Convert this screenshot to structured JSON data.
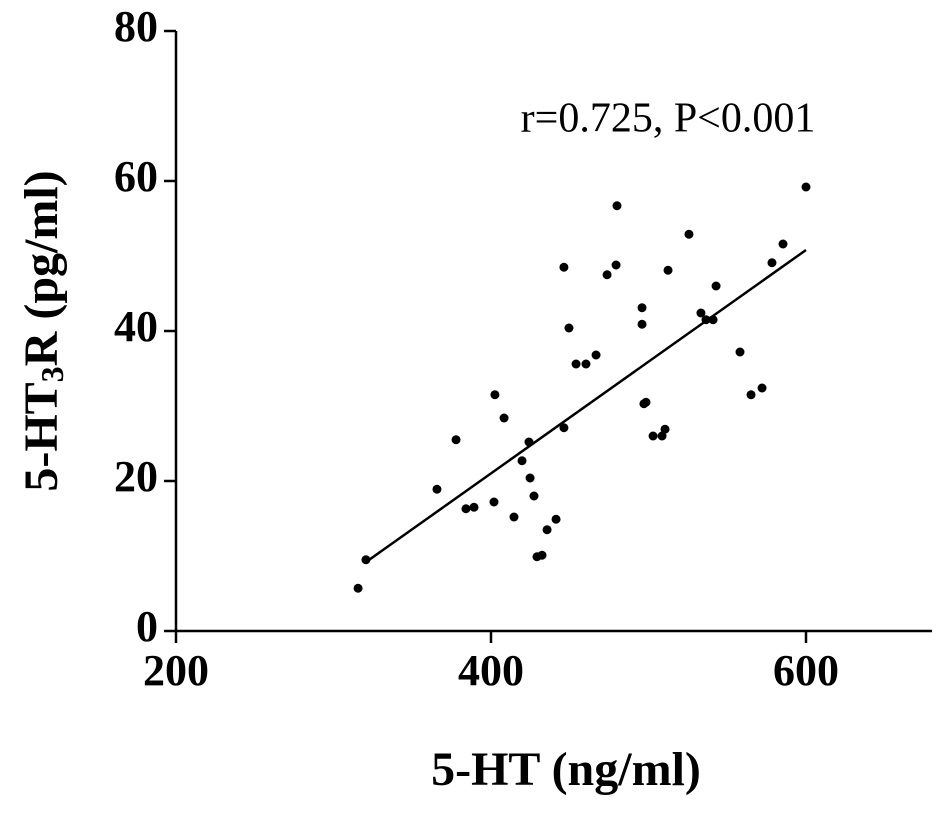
{
  "chart_data": {
    "type": "scatter",
    "annotation": "r=0.725, P<0.001",
    "x_label": "5-HT (ng/ml)",
    "y_label_parts": [
      "5-HT",
      "3",
      "R (pg/ml)"
    ],
    "color": "#000000",
    "xlim": [
      200,
      680
    ],
    "ylim": [
      0,
      80
    ],
    "xticks": [
      200,
      400,
      600
    ],
    "yticks": [
      0,
      20,
      40,
      60,
      80
    ],
    "grid": false,
    "x": [
      315.6,
      320.6,
      365.7,
      377.8,
      384.1,
      389.2,
      401.9,
      402.5,
      408.3,
      414.6,
      419.7,
      424.1,
      424.8,
      427.3,
      429.2,
      432.4,
      435.6,
      441.3,
      446.3,
      446.3,
      449.5,
      454.0,
      460.3,
      466.7,
      473.7,
      479.4,
      480.0,
      495.9,
      495.9,
      497.1,
      498.4,
      502.9,
      508.6,
      510.5,
      512.4,
      525.7,
      533.3,
      536.5,
      541.0,
      542.9,
      558.1,
      565.1,
      572.1,
      578.4,
      585.4,
      600.0
    ],
    "values": [
      5.7,
      9.5,
      18.9,
      25.5,
      16.3,
      16.5,
      17.2,
      31.5,
      28.4,
      15.2,
      22.7,
      25.2,
      20.4,
      18.0,
      9.9,
      10.1,
      13.5,
      14.9,
      27.1,
      48.5,
      40.4,
      35.6,
      35.6,
      36.8,
      47.5,
      48.8,
      56.7,
      43.1,
      40.9,
      30.3,
      30.5,
      26.0,
      26.0,
      26.9,
      48.1,
      52.9,
      42.4,
      41.5,
      41.5,
      46.0,
      37.2,
      31.5,
      32.4,
      49.1,
      51.6,
      59.2
    ],
    "fit": {
      "x": [
        320,
        600
      ],
      "y": [
        9.1,
        50.8
      ]
    }
  }
}
